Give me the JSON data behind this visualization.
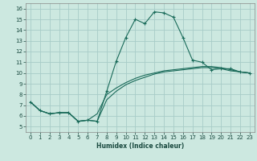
{
  "title": "",
  "xlabel": "Humidex (Indice chaleur)",
  "ylabel": "",
  "bg_color": "#cce8e0",
  "grid_color": "#a8ccc8",
  "line_color": "#1a6b5a",
  "xlim": [
    -0.5,
    23.5
  ],
  "ylim": [
    4.5,
    16.5
  ],
  "xticks": [
    0,
    1,
    2,
    3,
    4,
    5,
    6,
    7,
    8,
    9,
    10,
    11,
    12,
    13,
    14,
    15,
    16,
    17,
    18,
    19,
    20,
    21,
    22,
    23
  ],
  "yticks": [
    5,
    6,
    7,
    8,
    9,
    10,
    11,
    12,
    13,
    14,
    15,
    16
  ],
  "series": [
    {
      "x": [
        0,
        1,
        2,
        3,
        4,
        5,
        6,
        7,
        8,
        9,
        10,
        11,
        12,
        13,
        14,
        15,
        16,
        17,
        18,
        19,
        20,
        21,
        22,
        23
      ],
      "y": [
        7.3,
        6.5,
        6.2,
        6.3,
        6.3,
        5.5,
        5.6,
        5.5,
        8.3,
        11.1,
        13.3,
        15.0,
        14.6,
        15.7,
        15.6,
        15.2,
        13.3,
        11.2,
        11.0,
        10.3,
        10.4,
        10.4,
        10.1,
        10.0
      ],
      "marker": true
    },
    {
      "x": [
        0,
        1,
        2,
        3,
        4,
        5,
        6,
        7,
        8,
        9,
        10,
        11,
        12,
        13,
        14,
        15,
        16,
        17,
        18,
        19,
        20,
        21,
        22,
        23
      ],
      "y": [
        7.3,
        6.5,
        6.2,
        6.3,
        6.3,
        5.5,
        5.6,
        5.5,
        7.5,
        8.3,
        8.9,
        9.3,
        9.6,
        9.9,
        10.1,
        10.2,
        10.3,
        10.4,
        10.5,
        10.5,
        10.4,
        10.2,
        10.1,
        10.0
      ],
      "marker": false
    },
    {
      "x": [
        0,
        1,
        2,
        3,
        4,
        5,
        6,
        7,
        8,
        9,
        10,
        11,
        12,
        13,
        14,
        15,
        16,
        17,
        18,
        19,
        20,
        21,
        22,
        23
      ],
      "y": [
        7.3,
        6.5,
        6.2,
        6.3,
        6.3,
        5.5,
        5.6,
        6.2,
        8.0,
        8.6,
        9.1,
        9.5,
        9.8,
        10.0,
        10.2,
        10.3,
        10.4,
        10.5,
        10.6,
        10.6,
        10.5,
        10.3,
        10.1,
        10.0
      ],
      "marker": false
    }
  ]
}
